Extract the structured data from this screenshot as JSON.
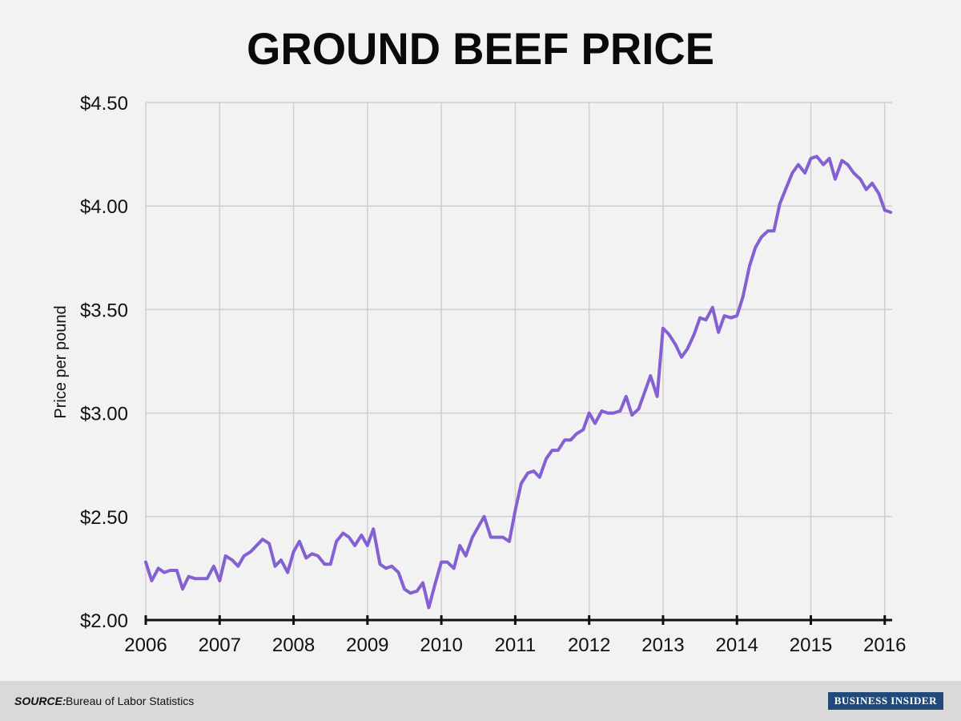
{
  "source": {
    "label": "SOURCE:",
    "text": "Bureau of Labor Statistics"
  },
  "brand": "BUSINESS INSIDER",
  "chart_data": {
    "type": "line",
    "title": "GROUND BEEF PRICE",
    "xlabel": "",
    "ylabel": "Price per pound",
    "xlim": [
      2006,
      2016.1
    ],
    "ylim": [
      2.0,
      4.5
    ],
    "x_ticks": [
      2006,
      2007,
      2008,
      2009,
      2010,
      2011,
      2012,
      2013,
      2014,
      2015,
      2016
    ],
    "y_ticks": [
      2.0,
      2.5,
      3.0,
      3.5,
      4.0,
      4.5
    ],
    "y_tick_labels": [
      "$2.00",
      "$2.50",
      "$3.00",
      "$3.50",
      "$4.00",
      "$4.50"
    ],
    "grid": true,
    "line_color": "#8460d3",
    "series": [
      {
        "x": [
          2006.0,
          2006.08,
          2006.17,
          2006.25,
          2006.33,
          2006.42,
          2006.5,
          2006.58,
          2006.67,
          2006.75,
          2006.83,
          2006.92,
          2007.0,
          2007.08,
          2007.17,
          2007.25,
          2007.33,
          2007.42,
          2007.5,
          2007.58,
          2007.67,
          2007.75,
          2007.83,
          2007.92,
          2008.0,
          2008.08,
          2008.17,
          2008.25,
          2008.33,
          2008.42,
          2008.5,
          2008.58,
          2008.67,
          2008.75,
          2008.83,
          2008.92,
          2009.0,
          2009.08,
          2009.17,
          2009.25,
          2009.33,
          2009.42,
          2009.5,
          2009.58,
          2009.67,
          2009.75,
          2009.83,
          2009.92,
          2010.0,
          2010.08,
          2010.17,
          2010.25,
          2010.33,
          2010.42,
          2010.5,
          2010.58,
          2010.67,
          2010.75,
          2010.83,
          2010.92,
          2011.0,
          2011.08,
          2011.17,
          2011.25,
          2011.33,
          2011.42,
          2011.5,
          2011.58,
          2011.67,
          2011.75,
          2011.83,
          2011.92,
          2012.0,
          2012.08,
          2012.17,
          2012.25,
          2012.33,
          2012.42,
          2012.5,
          2012.58,
          2012.67,
          2012.75,
          2012.83,
          2012.92,
          2013.0,
          2013.08,
          2013.17,
          2013.25,
          2013.33,
          2013.42,
          2013.5,
          2013.58,
          2013.67,
          2013.75,
          2013.83,
          2013.92,
          2014.0,
          2014.08,
          2014.17,
          2014.25,
          2014.33,
          2014.42,
          2014.5,
          2014.58,
          2014.67,
          2014.75,
          2014.83,
          2014.92,
          2015.0,
          2015.08,
          2015.17,
          2015.25,
          2015.33,
          2015.42,
          2015.5,
          2015.58,
          2015.67,
          2015.75,
          2015.83,
          2015.92,
          2016.0,
          2016.08
        ],
        "y": [
          2.28,
          2.19,
          2.25,
          2.23,
          2.24,
          2.24,
          2.15,
          2.21,
          2.2,
          2.2,
          2.2,
          2.26,
          2.19,
          2.31,
          2.29,
          2.26,
          2.31,
          2.33,
          2.36,
          2.39,
          2.37,
          2.26,
          2.29,
          2.23,
          2.33,
          2.38,
          2.3,
          2.32,
          2.31,
          2.27,
          2.27,
          2.38,
          2.42,
          2.4,
          2.36,
          2.41,
          2.36,
          2.44,
          2.27,
          2.25,
          2.26,
          2.23,
          2.15,
          2.13,
          2.14,
          2.18,
          2.06,
          2.18,
          2.28,
          2.28,
          2.25,
          2.36,
          2.31,
          2.4,
          2.45,
          2.5,
          2.4,
          2.4,
          2.4,
          2.38,
          2.53,
          2.66,
          2.71,
          2.72,
          2.69,
          2.78,
          2.82,
          2.82,
          2.87,
          2.87,
          2.9,
          2.92,
          3.0,
          2.95,
          3.01,
          3.0,
          3.0,
          3.01,
          3.08,
          2.99,
          3.02,
          3.1,
          3.18,
          3.08,
          3.41,
          3.38,
          3.33,
          3.27,
          3.31,
          3.38,
          3.46,
          3.45,
          3.51,
          3.39,
          3.47,
          3.46,
          3.47,
          3.56,
          3.71,
          3.8,
          3.85,
          3.88,
          3.88,
          4.01,
          4.09,
          4.16,
          4.2,
          4.16,
          4.23,
          4.24,
          4.2,
          4.23,
          4.13,
          4.22,
          4.2,
          4.16,
          4.13,
          4.08,
          4.11,
          4.06,
          3.98,
          3.97
        ]
      }
    ]
  }
}
